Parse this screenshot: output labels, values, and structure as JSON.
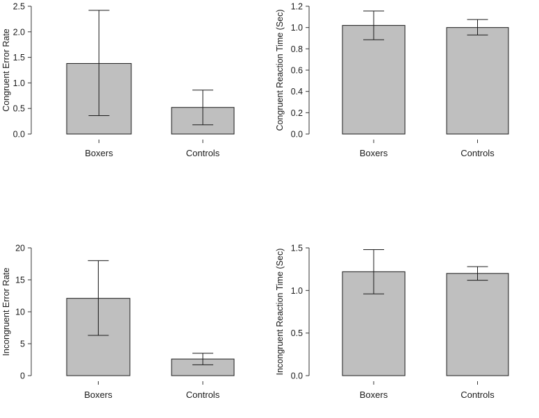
{
  "chart_data": [
    {
      "type": "bar",
      "title": "",
      "categories": [
        "Boxers",
        "Controls"
      ],
      "values": [
        1.38,
        0.52
      ],
      "error_low": [
        0.36,
        0.18
      ],
      "error_high": [
        2.42,
        0.86
      ],
      "ylabel": "Congruent Error Rate",
      "xlabel": "",
      "ylim": [
        0,
        2.5
      ],
      "yticks": [
        "0.0",
        "0.5",
        "1.0",
        "1.5",
        "2.0",
        "2.5"
      ],
      "bar_color": "#bfbfbf"
    },
    {
      "type": "bar",
      "title": "",
      "categories": [
        "Boxers",
        "Controls"
      ],
      "values": [
        1.02,
        1.0
      ],
      "error_low": [
        0.885,
        0.93
      ],
      "error_high": [
        1.155,
        1.075
      ],
      "ylabel": "Congruent Reaction Time (Sec)",
      "xlabel": "",
      "ylim": [
        0,
        1.2
      ],
      "yticks": [
        "0.0",
        "0.2",
        "0.4",
        "0.6",
        "0.8",
        "1.0",
        "1.2"
      ],
      "bar_color": "#bfbfbf"
    },
    {
      "type": "bar",
      "title": "",
      "categories": [
        "Boxers",
        "Controls"
      ],
      "values": [
        12.1,
        2.6
      ],
      "error_low": [
        6.3,
        1.7
      ],
      "error_high": [
        18.0,
        3.5
      ],
      "ylabel": "Incongruent Error Rate",
      "xlabel": "",
      "ylim": [
        0,
        20
      ],
      "yticks": [
        "0",
        "5",
        "10",
        "15",
        "20"
      ],
      "bar_color": "#bfbfbf"
    },
    {
      "type": "bar",
      "title": "",
      "categories": [
        "Boxers",
        "Controls"
      ],
      "values": [
        1.22,
        1.2
      ],
      "error_low": [
        0.96,
        1.12
      ],
      "error_high": [
        1.48,
        1.28
      ],
      "ylabel": "Incongruent Reaction Time (Sec)",
      "xlabel": "",
      "ylim": [
        0,
        1.5
      ],
      "yticks": [
        "0.0",
        "0.5",
        "1.0",
        "1.5"
      ],
      "bar_color": "#bfbfbf"
    }
  ]
}
